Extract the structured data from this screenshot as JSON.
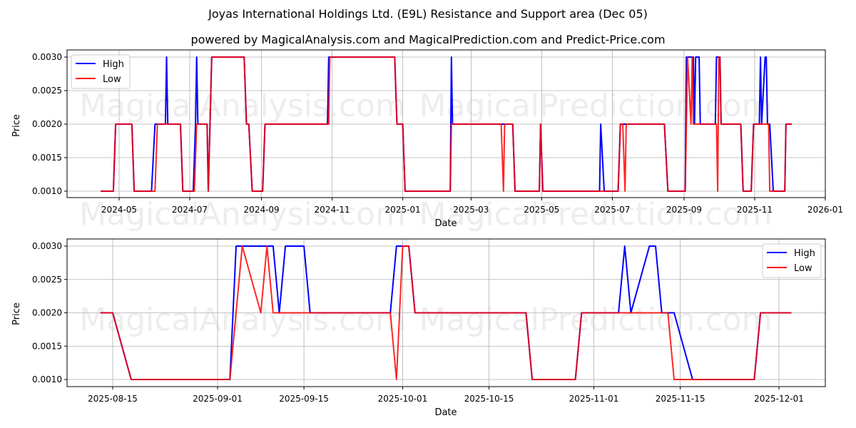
{
  "header": {
    "title": "Joyas International Holdings Ltd. (E9L) Resistance and Support area (Dec 05)",
    "subtitle": "powered by MagicalAnalysis.com and MagicalPrediction.com and Predict-Price.com"
  },
  "watermarks": [
    "MagicalAnalysis.com",
    "MagicalPrediction.com"
  ],
  "colors": {
    "high": "#0000ff",
    "low": "#ff0000",
    "grid": "#b0b0b0",
    "axis": "#000000"
  },
  "chart_data": [
    {
      "type": "line",
      "title": "",
      "xlabel": "Date",
      "ylabel": "Price",
      "ylim": [
        0.0009,
        0.0031
      ],
      "yticks": [
        "0.0010",
        "0.0015",
        "0.0020",
        "0.0025",
        "0.0030"
      ],
      "xticks": [
        "2024-05",
        "2024-07",
        "2024-09",
        "2024-11",
        "2025-01",
        "2025-03",
        "2025-05",
        "2025-07",
        "2025-09",
        "2025-11",
        "2026-01"
      ],
      "grid": true,
      "legend": {
        "position": "upper left",
        "entries": [
          "High",
          "Low"
        ]
      },
      "series": [
        {
          "name": "High",
          "points": [
            [
              "2024-04-15",
              0.001
            ],
            [
              "2024-04-26",
              0.001
            ],
            [
              "2024-04-28",
              0.002
            ],
            [
              "2024-05-12",
              0.002
            ],
            [
              "2024-05-14",
              0.001
            ],
            [
              "2024-05-29",
              0.001
            ],
            [
              "2024-06-01",
              0.002
            ],
            [
              "2024-06-10",
              0.002
            ],
            [
              "2024-06-11",
              0.003
            ],
            [
              "2024-06-12",
              0.002
            ],
            [
              "2024-06-23",
              0.002
            ],
            [
              "2024-06-25",
              0.001
            ],
            [
              "2024-07-04",
              0.001
            ],
            [
              "2024-07-06",
              0.002
            ],
            [
              "2024-07-07",
              0.003
            ],
            [
              "2024-07-08",
              0.002
            ],
            [
              "2024-07-16",
              0.002
            ],
            [
              "2024-07-17",
              0.001
            ],
            [
              "2024-07-20",
              0.003
            ],
            [
              "2024-08-17",
              0.003
            ],
            [
              "2024-08-19",
              0.002
            ],
            [
              "2024-08-21",
              0.002
            ],
            [
              "2024-08-24",
              0.001
            ],
            [
              "2024-09-02",
              0.001
            ],
            [
              "2024-09-04",
              0.002
            ],
            [
              "2024-10-28",
              0.002
            ],
            [
              "2024-10-29",
              0.003
            ],
            [
              "2024-12-25",
              0.003
            ],
            [
              "2024-12-27",
              0.002
            ],
            [
              "2025-01-01",
              0.002
            ],
            [
              "2025-01-03",
              0.001
            ],
            [
              "2025-02-11",
              0.001
            ],
            [
              "2025-02-12",
              0.003
            ],
            [
              "2025-02-13",
              0.002
            ],
            [
              "2025-03-28",
              0.002
            ],
            [
              "2025-04-06",
              0.002
            ],
            [
              "2025-04-08",
              0.001
            ],
            [
              "2025-04-29",
              0.001
            ],
            [
              "2025-04-30",
              0.002
            ],
            [
              "2025-05-02",
              0.001
            ],
            [
              "2025-06-20",
              0.001
            ],
            [
              "2025-06-21",
              0.002
            ],
            [
              "2025-06-24",
              0.001
            ],
            [
              "2025-07-06",
              0.001
            ],
            [
              "2025-07-08",
              0.002
            ],
            [
              "2025-08-15",
              0.002
            ],
            [
              "2025-08-18",
              0.001
            ],
            [
              "2025-09-02",
              0.001
            ],
            [
              "2025-09-03",
              0.003
            ],
            [
              "2025-09-09",
              0.003
            ],
            [
              "2025-09-10",
              0.002
            ],
            [
              "2025-09-11",
              0.003
            ],
            [
              "2025-09-14",
              0.003
            ],
            [
              "2025-09-15",
              0.002
            ],
            [
              "2025-09-28",
              0.002
            ],
            [
              "2025-09-29",
              0.003
            ],
            [
              "2025-10-02",
              0.003
            ],
            [
              "2025-10-03",
              0.002
            ],
            [
              "2025-10-20",
              0.002
            ],
            [
              "2025-10-22",
              0.001
            ],
            [
              "2025-10-29",
              0.001
            ],
            [
              "2025-10-31",
              0.002
            ],
            [
              "2025-11-05",
              0.002
            ],
            [
              "2025-11-06",
              0.003
            ],
            [
              "2025-11-07",
              0.002
            ],
            [
              "2025-11-10",
              0.003
            ],
            [
              "2025-11-11",
              0.003
            ],
            [
              "2025-11-12",
              0.002
            ],
            [
              "2025-11-14",
              0.002
            ],
            [
              "2025-11-17",
              0.001
            ],
            [
              "2025-11-27",
              0.001
            ],
            [
              "2025-11-28",
              0.002
            ],
            [
              "2025-12-03",
              0.002
            ]
          ]
        },
        {
          "name": "Low",
          "points": [
            [
              "2024-04-15",
              0.001
            ],
            [
              "2024-04-26",
              0.001
            ],
            [
              "2024-04-28",
              0.002
            ],
            [
              "2024-05-12",
              0.002
            ],
            [
              "2024-05-14",
              0.001
            ],
            [
              "2024-06-01",
              0.001
            ],
            [
              "2024-06-03",
              0.002
            ],
            [
              "2024-06-23",
              0.002
            ],
            [
              "2024-06-25",
              0.001
            ],
            [
              "2024-07-05",
              0.001
            ],
            [
              "2024-07-07",
              0.002
            ],
            [
              "2024-07-16",
              0.002
            ],
            [
              "2024-07-17",
              0.001
            ],
            [
              "2024-07-20",
              0.003
            ],
            [
              "2024-08-17",
              0.003
            ],
            [
              "2024-08-19",
              0.002
            ],
            [
              "2024-08-21",
              0.002
            ],
            [
              "2024-08-24",
              0.001
            ],
            [
              "2024-09-02",
              0.001
            ],
            [
              "2024-09-04",
              0.002
            ],
            [
              "2024-10-29",
              0.002
            ],
            [
              "2024-10-30",
              0.003
            ],
            [
              "2024-12-25",
              0.003
            ],
            [
              "2024-12-27",
              0.002
            ],
            [
              "2025-01-01",
              0.002
            ],
            [
              "2025-01-03",
              0.001
            ],
            [
              "2025-02-11",
              0.001
            ],
            [
              "2025-02-12",
              0.002
            ],
            [
              "2025-03-27",
              0.002
            ],
            [
              "2025-03-29",
              0.001
            ],
            [
              "2025-03-30",
              0.002
            ],
            [
              "2025-04-06",
              0.002
            ],
            [
              "2025-04-08",
              0.001
            ],
            [
              "2025-04-29",
              0.001
            ],
            [
              "2025-04-30",
              0.002
            ],
            [
              "2025-05-02",
              0.001
            ],
            [
              "2025-07-06",
              0.001
            ],
            [
              "2025-07-08",
              0.002
            ],
            [
              "2025-07-10",
              0.002
            ],
            [
              "2025-07-12",
              0.001
            ],
            [
              "2025-07-13",
              0.002
            ],
            [
              "2025-08-15",
              0.002
            ],
            [
              "2025-08-18",
              0.001
            ],
            [
              "2025-09-02",
              0.001
            ],
            [
              "2025-09-04",
              0.003
            ],
            [
              "2025-09-07",
              0.002
            ],
            [
              "2025-09-08",
              0.003
            ],
            [
              "2025-09-09",
              0.002
            ],
            [
              "2025-09-29",
              0.002
            ],
            [
              "2025-09-30",
              0.001
            ],
            [
              "2025-10-01",
              0.003
            ],
            [
              "2025-10-02",
              0.003
            ],
            [
              "2025-10-03",
              0.002
            ],
            [
              "2025-10-20",
              0.002
            ],
            [
              "2025-10-22",
              0.001
            ],
            [
              "2025-10-29",
              0.001
            ],
            [
              "2025-10-31",
              0.002
            ],
            [
              "2025-11-13",
              0.002
            ],
            [
              "2025-11-14",
              0.001
            ],
            [
              "2025-11-27",
              0.001
            ],
            [
              "2025-11-28",
              0.002
            ],
            [
              "2025-12-03",
              0.002
            ]
          ]
        }
      ]
    },
    {
      "type": "line",
      "title": "",
      "xlabel": "Date",
      "ylabel": "Price",
      "ylim": [
        0.0009,
        0.0031
      ],
      "yticks": [
        "0.0010",
        "0.0015",
        "0.0020",
        "0.0025",
        "0.0030"
      ],
      "xticks": [
        "2025-08-15",
        "2025-09-01",
        "2025-09-15",
        "2025-10-01",
        "2025-10-15",
        "2025-11-01",
        "2025-11-15",
        "2025-12-01"
      ],
      "grid": true,
      "legend": {
        "position": "upper right",
        "entries": [
          "High",
          "Low"
        ]
      },
      "series": [
        {
          "name": "High",
          "points": [
            [
              "2025-08-13",
              0.002
            ],
            [
              "2025-08-15",
              0.002
            ],
            [
              "2025-08-18",
              0.001
            ],
            [
              "2025-09-03",
              0.001
            ],
            [
              "2025-09-04",
              0.003
            ],
            [
              "2025-09-10",
              0.003
            ],
            [
              "2025-09-11",
              0.002
            ],
            [
              "2025-09-12",
              0.003
            ],
            [
              "2025-09-15",
              0.003
            ],
            [
              "2025-09-16",
              0.002
            ],
            [
              "2025-09-29",
              0.002
            ],
            [
              "2025-09-30",
              0.003
            ],
            [
              "2025-10-01",
              0.003
            ],
            [
              "2025-10-02",
              0.003
            ],
            [
              "2025-10-03",
              0.002
            ],
            [
              "2025-10-21",
              0.002
            ],
            [
              "2025-10-22",
              0.001
            ],
            [
              "2025-10-29",
              0.001
            ],
            [
              "2025-10-30",
              0.002
            ],
            [
              "2025-11-05",
              0.002
            ],
            [
              "2025-11-06",
              0.003
            ],
            [
              "2025-11-07",
              0.002
            ],
            [
              "2025-11-10",
              0.003
            ],
            [
              "2025-11-11",
              0.003
            ],
            [
              "2025-11-12",
              0.002
            ],
            [
              "2025-11-14",
              0.002
            ],
            [
              "2025-11-17",
              0.001
            ],
            [
              "2025-11-27",
              0.001
            ],
            [
              "2025-11-28",
              0.002
            ],
            [
              "2025-12-03",
              0.002
            ]
          ]
        },
        {
          "name": "Low",
          "points": [
            [
              "2025-08-13",
              0.002
            ],
            [
              "2025-08-15",
              0.002
            ],
            [
              "2025-08-18",
              0.001
            ],
            [
              "2025-09-03",
              0.001
            ],
            [
              "2025-09-05",
              0.003
            ],
            [
              "2025-09-08",
              0.002
            ],
            [
              "2025-09-09",
              0.003
            ],
            [
              "2025-09-10",
              0.002
            ],
            [
              "2025-09-29",
              0.002
            ],
            [
              "2025-09-30",
              0.001
            ],
            [
              "2025-10-01",
              0.003
            ],
            [
              "2025-10-02",
              0.003
            ],
            [
              "2025-10-03",
              0.002
            ],
            [
              "2025-10-21",
              0.002
            ],
            [
              "2025-10-22",
              0.001
            ],
            [
              "2025-10-29",
              0.001
            ],
            [
              "2025-10-30",
              0.002
            ],
            [
              "2025-11-13",
              0.002
            ],
            [
              "2025-11-14",
              0.001
            ],
            [
              "2025-11-27",
              0.001
            ],
            [
              "2025-11-28",
              0.002
            ],
            [
              "2025-12-03",
              0.002
            ]
          ]
        }
      ]
    }
  ]
}
